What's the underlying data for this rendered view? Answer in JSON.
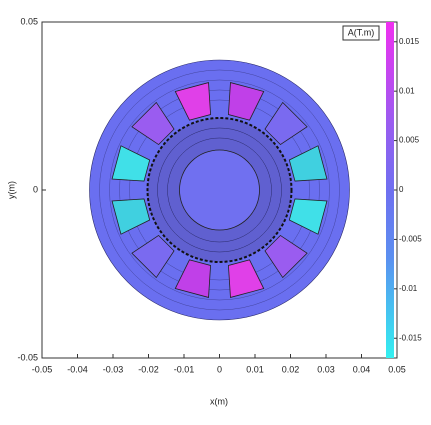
{
  "chart_data": {
    "type": "contour",
    "xlabel": "x(m)",
    "ylabel": "y(m)",
    "xlim": [
      -0.05,
      0.05
    ],
    "xticks": [
      -0.05,
      -0.04,
      -0.03,
      -0.02,
      -0.01,
      0,
      0.01,
      0.02,
      0.03,
      0.04,
      0.05
    ],
    "ylim": [
      -0.05,
      0.05
    ],
    "yticks": [
      -0.05,
      0,
      0.05
    ],
    "colorbar_label": "A(T.m)",
    "clim": [
      -0.017,
      0.017
    ],
    "cticks": [
      -0.015,
      -0.01,
      -0.005,
      0,
      0.005,
      0.01,
      0.015
    ]
  }
}
